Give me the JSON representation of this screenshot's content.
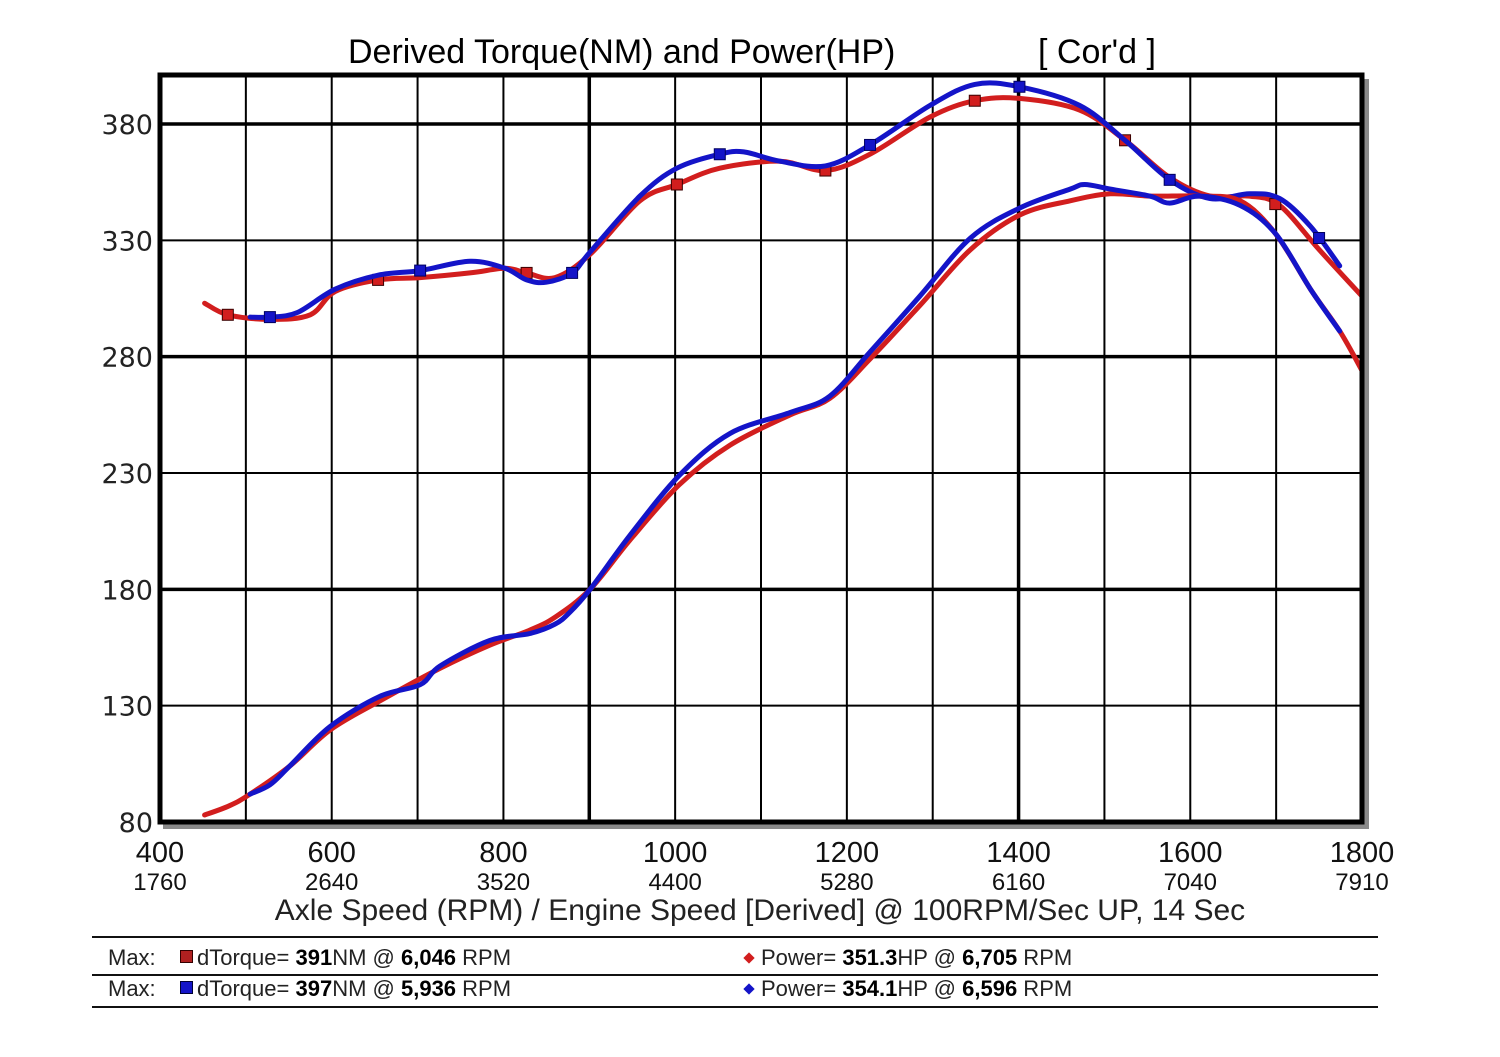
{
  "chart_data": {
    "type": "line",
    "title": "Derived Torque(NM) and Power(HP)",
    "title_tag": "[ Cor'd ]",
    "xlabel": "Axle Speed (RPM) / Engine Speed [Derived] @ 100RPM/Sec UP, 14 Sec",
    "ylabel": "",
    "xlim": [
      400,
      1800
    ],
    "ylim": [
      80,
      401
    ],
    "x_ticks_axle": [
      "400",
      "600",
      "800",
      "1000",
      "1200",
      "1400",
      "1600",
      "1800"
    ],
    "x_ticks_engine": [
      "1760",
      "2640",
      "3520",
      "4400",
      "5280",
      "6160",
      "7040",
      "7910"
    ],
    "x_tick_values": [
      400,
      600,
      800,
      1000,
      1200,
      1400,
      1600,
      1800
    ],
    "y_ticks": [
      "80",
      "130",
      "180",
      "230",
      "280",
      "330",
      "380"
    ],
    "y_tick_values": [
      80,
      130,
      180,
      230,
      280,
      330,
      380
    ],
    "grid": true,
    "grid_major_x": [
      900,
      1400
    ],
    "grid_major_y": [
      180,
      280,
      380
    ],
    "colors": {
      "run1": "#d21e1e",
      "run2": "#1414c8"
    },
    "series": [
      {
        "name": "dTorque run 1 (NM)",
        "color": "#d21e1e",
        "marker": "square",
        "x": [
          452,
          479,
          528,
          575,
          604,
          654,
          703,
          761,
          802,
          827,
          860,
          901,
          959,
          1002,
          1052,
          1122,
          1175,
          1227,
          1297,
          1349,
          1401,
          1471,
          1524,
          1576,
          1623,
          1669,
          1704,
          1750,
          1800
        ],
        "values": [
          303,
          298,
          296,
          298,
          308,
          313,
          314,
          316,
          318,
          316,
          314,
          324,
          347,
          354,
          361,
          364,
          360,
          367,
          383,
          390,
          391,
          386,
          373,
          357,
          349,
          349,
          345,
          326,
          306
        ],
        "markers_x": [
          479,
          654,
          827,
          1002,
          1175,
          1349,
          1524,
          1699
        ]
      },
      {
        "name": "dTorque run 2 (NM)",
        "color": "#1414c8",
        "marker": "square",
        "x": [
          505,
          528,
          560,
          604,
          654,
          703,
          761,
          802,
          827,
          850,
          880,
          901,
          959,
          1002,
          1052,
          1080,
          1122,
          1175,
          1227,
          1297,
          1349,
          1401,
          1471,
          1524,
          1576,
          1623,
          1669,
          1704,
          1740,
          1774
        ],
        "values": [
          297,
          297,
          299,
          309,
          315,
          317,
          321,
          318,
          313,
          312,
          316,
          325,
          349,
          361,
          367,
          368,
          364,
          362,
          371,
          388,
          397,
          396,
          388,
          373,
          356,
          348,
          350,
          348,
          336,
          319
        ],
        "markers_x": [
          528,
          703,
          880,
          1052,
          1227,
          1401,
          1576,
          1750
        ]
      },
      {
        "name": "Power run 1 (HP)",
        "color": "#d21e1e",
        "marker": "diamond",
        "x": [
          452,
          481,
          505,
          551,
          598,
          656,
          726,
          784,
          831,
          860,
          901,
          947,
          1005,
          1064,
          1134,
          1180,
          1227,
          1285,
          1344,
          1402,
          1460,
          1507,
          1553,
          1611,
          1658,
          1699,
          1740,
          1774,
          1800
        ],
        "values": [
          83,
          87,
          92,
          104,
          119.5,
          132,
          146,
          156,
          162.5,
          168,
          180,
          201,
          225,
          242,
          255,
          262,
          279,
          302,
          326,
          341,
          347,
          350,
          349,
          349,
          347,
          333,
          309,
          291,
          274
        ]
      },
      {
        "name": "Power run 2 (HP)",
        "color": "#1414c8",
        "marker": "diamond",
        "x": [
          505,
          528,
          551,
          598,
          656,
          703,
          726,
          784,
          831,
          860,
          877,
          901,
          947,
          1005,
          1064,
          1134,
          1180,
          1227,
          1285,
          1344,
          1402,
          1460,
          1477,
          1507,
          1553,
          1576,
          1611,
          1658,
          1699,
          1740,
          1774
        ],
        "values": [
          92,
          96,
          104,
          121,
          134,
          139,
          147,
          158,
          161,
          165,
          170,
          180,
          203,
          229,
          247,
          256,
          263,
          282,
          306,
          331,
          344,
          352,
          354,
          352,
          349,
          346,
          349,
          345,
          333,
          309,
          291
        ]
      }
    ]
  },
  "legend": {
    "rows": [
      {
        "max_label": "Max:",
        "torque_color": "#b02020",
        "torque_prefix": "dTorque= ",
        "torque_value": "391",
        "torque_unit": "NM @",
        "torque_rpm": "6,046",
        "torque_rpm_unit": " RPM",
        "power_color": "#d21e1e",
        "power_prefix": "Power= ",
        "power_value": "351.3",
        "power_unit": "HP @",
        "power_rpm": "6,705",
        "power_rpm_unit": " RPM"
      },
      {
        "max_label": "Max:",
        "torque_color": "#1414c8",
        "torque_prefix": "dTorque= ",
        "torque_value": "397",
        "torque_unit": "NM @",
        "torque_rpm": "5,936",
        "torque_rpm_unit": " RPM",
        "power_color": "#1414c8",
        "power_prefix": "Power= ",
        "power_value": "354.1",
        "power_unit": "HP @",
        "power_rpm": "6,596",
        "power_rpm_unit": " RPM"
      }
    ]
  }
}
